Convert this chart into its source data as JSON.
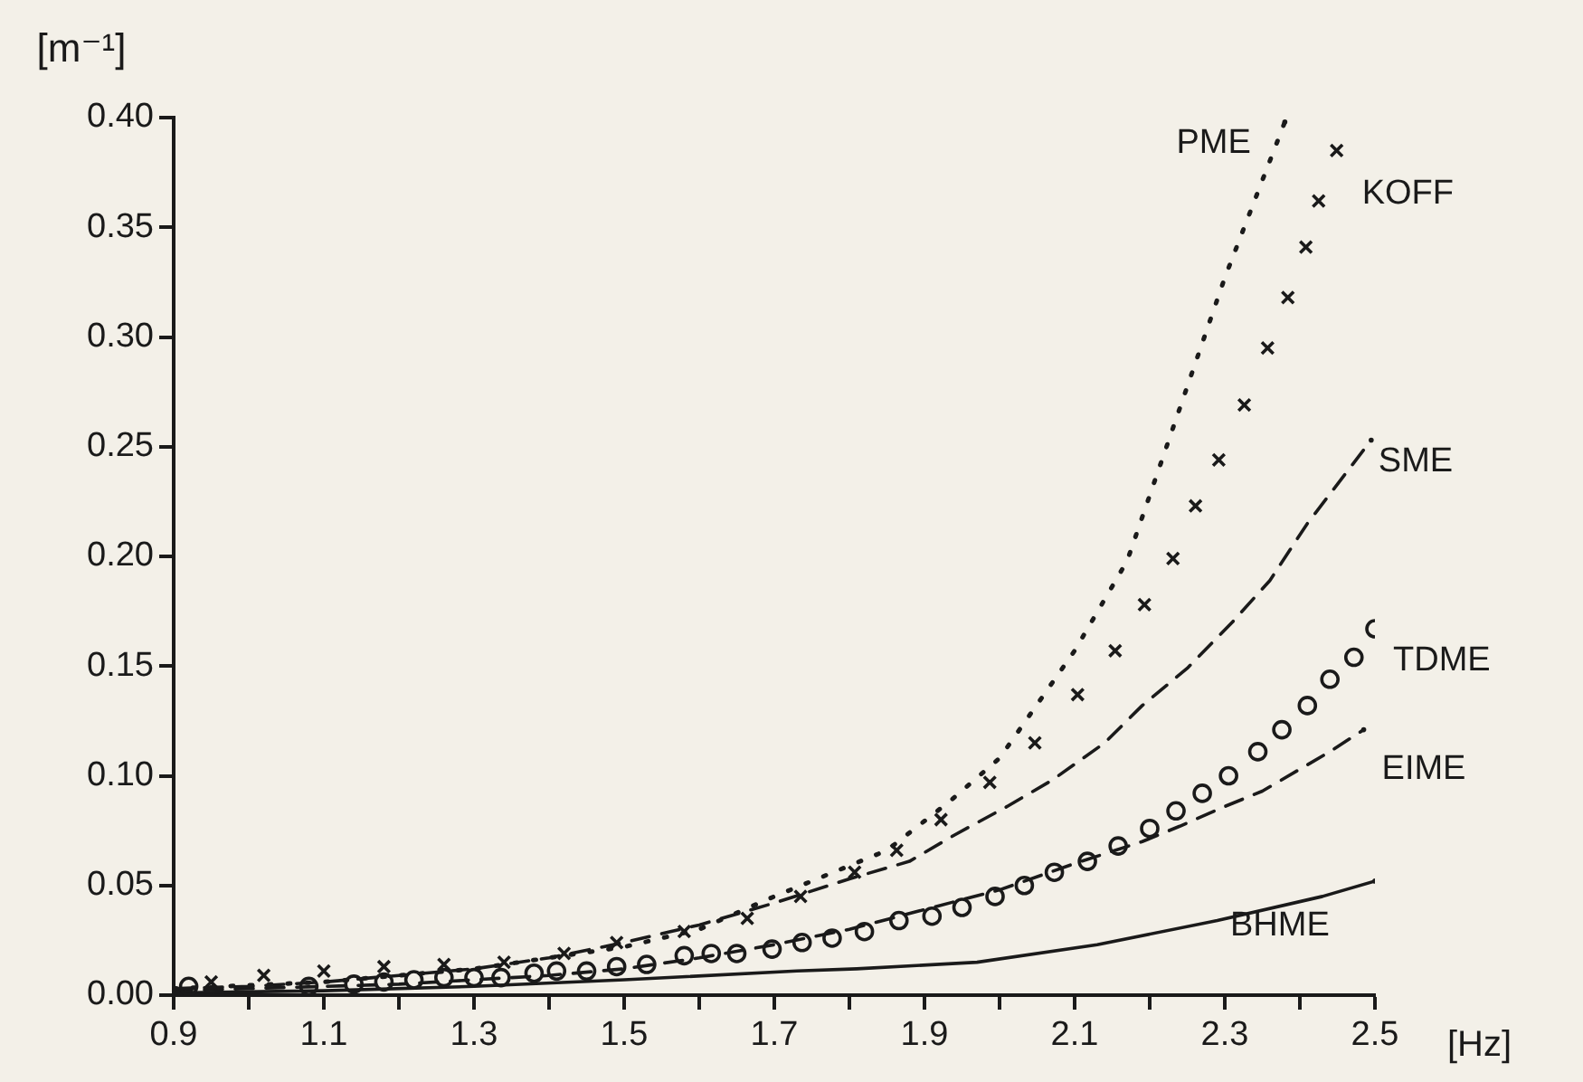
{
  "chart_data": {
    "type": "line",
    "ylabel": "[m⁻¹]",
    "xlabel": "[Hz]",
    "xlim": [
      0.9,
      2.5
    ],
    "ylim": [
      0,
      0.4
    ],
    "xticks": [
      0.9,
      {
        "value": 1.0,
        "label": null
      },
      1.1,
      {
        "value": 1.2,
        "label": null
      },
      1.3,
      {
        "value": 1.4,
        "label": null
      },
      1.5,
      {
        "value": 1.6,
        "label": null
      },
      1.7,
      {
        "value": 1.8,
        "label": null
      },
      1.9,
      {
        "value": 2.0,
        "label": null
      },
      2.1,
      {
        "value": 2.2,
        "label": null
      },
      2.3,
      {
        "value": 2.4,
        "label": null
      },
      2.5
    ],
    "yticks": [
      {
        "value": 0,
        "label": "0.00"
      },
      {
        "value": 0.05,
        "label": "0.05"
      },
      {
        "value": 0.1,
        "label": "0.10"
      },
      {
        "value": 0.15,
        "label": "0.15"
      },
      {
        "value": 0.2,
        "label": "0.20"
      },
      {
        "value": 0.25,
        "label": "0.25"
      },
      {
        "value": 0.3,
        "label": "0.30"
      },
      {
        "value": 0.35,
        "label": "0.35"
      },
      {
        "value": 0.4,
        "label": "0.40"
      }
    ],
    "grid": false,
    "legend": false,
    "series": [
      {
        "name": "PME",
        "color": "#1a1a1a",
        "line_style": "dotted",
        "marker": "none",
        "x": [
          0.9,
          1.1,
          1.3,
          1.5,
          1.6,
          1.7,
          1.85,
          1.936,
          2.0,
          2.1,
          2.17,
          2.3,
          2.38
        ],
        "values": [
          0.003,
          0.006,
          0.012,
          0.022,
          0.03,
          0.045,
          0.066,
          0.089,
          0.108,
          0.157,
          0.198,
          0.327,
          0.398
        ]
      },
      {
        "name": "KOFF",
        "type": "scatter",
        "color": "#1a1a1a",
        "marker": "cross",
        "x": [
          0.95,
          1.02,
          1.1,
          1.18,
          1.26,
          1.34,
          1.42,
          1.49,
          1.58,
          1.664,
          1.735,
          1.807,
          1.863,
          1.922,
          1.987,
          2.047,
          2.104,
          2.154,
          2.193,
          2.231,
          2.261,
          2.292,
          2.326,
          2.357,
          2.384,
          2.408,
          2.425,
          2.449
        ],
        "values": [
          0.006,
          0.009,
          0.011,
          0.013,
          0.014,
          0.015,
          0.019,
          0.024,
          0.029,
          0.035,
          0.045,
          0.056,
          0.066,
          0.08,
          0.097,
          0.115,
          0.137,
          0.157,
          0.178,
          0.199,
          0.223,
          0.244,
          0.269,
          0.295,
          0.318,
          0.341,
          0.362,
          0.385
        ]
      },
      {
        "name": "SME",
        "color": "#1a1a1a",
        "line_style": "dashed",
        "marker": "none",
        "x": [
          0.9,
          1.0,
          1.1,
          1.2,
          1.3,
          1.4,
          1.5,
          1.6,
          1.7,
          1.8,
          1.88,
          1.94,
          2.01,
          2.07,
          2.14,
          2.19,
          2.25,
          2.31,
          2.36,
          2.41,
          2.495
        ],
        "values": [
          0.003,
          0.004,
          0.006,
          0.009,
          0.012,
          0.017,
          0.024,
          0.032,
          0.042,
          0.053,
          0.061,
          0.073,
          0.086,
          0.098,
          0.115,
          0.132,
          0.149,
          0.17,
          0.189,
          0.215,
          0.253
        ]
      },
      {
        "name": "TDME",
        "type": "scatter",
        "color": "#1a1a1a",
        "marker": "circle",
        "x": [
          0.92,
          0.96,
          1.02,
          1.08,
          1.14,
          1.18,
          1.22,
          1.26,
          1.3,
          1.336,
          1.38,
          1.41,
          1.45,
          1.49,
          1.53,
          1.58,
          1.616,
          1.65,
          1.697,
          1.737,
          1.777,
          1.82,
          1.866,
          1.91,
          1.95,
          1.994,
          2.033,
          2.073,
          2.117,
          2.158,
          2.2,
          2.235,
          2.27,
          2.305,
          2.344,
          2.376,
          2.41,
          2.44,
          2.472,
          2.5
        ],
        "values": [
          0.004,
          null,
          null,
          0.004,
          0.005,
          0.006,
          0.007,
          0.008,
          0.008,
          0.008,
          0.01,
          0.011,
          0.011,
          0.013,
          0.014,
          0.018,
          0.019,
          0.019,
          0.021,
          0.024,
          0.026,
          0.029,
          0.034,
          0.036,
          0.04,
          0.045,
          0.05,
          0.056,
          0.061,
          0.068,
          0.076,
          0.084,
          0.092,
          0.1,
          0.111,
          0.121,
          0.132,
          0.144,
          0.154,
          0.167
        ]
      },
      {
        "name": "EIME",
        "color": "#1a1a1a",
        "line_style": "dashed",
        "marker": "none",
        "x": [
          0.9,
          1.0,
          1.1,
          1.2,
          1.3,
          1.4,
          1.5,
          1.6,
          1.7,
          1.8,
          1.9,
          2.0,
          2.1,
          2.19,
          2.24,
          2.3,
          2.35,
          2.4,
          2.44,
          2.485
        ],
        "values": [
          0.002,
          0.003,
          0.004,
          0.005,
          0.007,
          0.009,
          0.012,
          0.017,
          0.023,
          0.03,
          0.039,
          0.048,
          0.06,
          0.07,
          0.077,
          0.086,
          0.093,
          0.103,
          0.111,
          0.121
        ]
      },
      {
        "name": "BHME",
        "color": "#1a1a1a",
        "line_style": "solid",
        "marker": "none",
        "x": [
          0.9,
          1.1,
          1.3,
          1.5,
          1.73,
          1.81,
          1.97,
          2.13,
          2.29,
          2.43,
          2.5
        ],
        "values": [
          0.001,
          0.002,
          0.004,
          0.007,
          0.011,
          0.012,
          0.015,
          0.023,
          0.034,
          0.045,
          0.052
        ]
      }
    ]
  }
}
